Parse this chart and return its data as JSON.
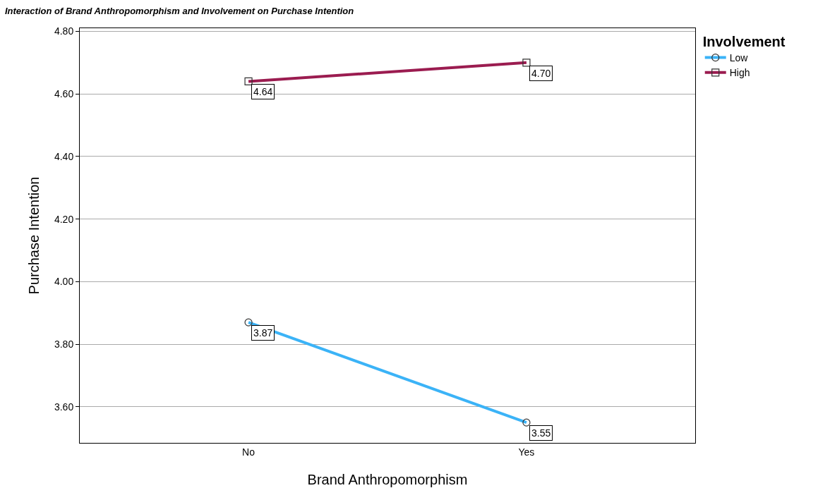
{
  "chart_data": {
    "type": "line",
    "title": "Interaction of Brand Anthropomorphism and Involvement on Purchase Intention",
    "xlabel": "Brand Anthropomorphism",
    "ylabel": "Purchase Intention",
    "legend_title": "Involvement",
    "categories": [
      "No",
      "Yes"
    ],
    "series": [
      {
        "name": "Low",
        "color": "#3bb3f7",
        "values": [
          3.87,
          3.55
        ],
        "value_labels": [
          "3.87",
          "3.55"
        ],
        "marker": "circle"
      },
      {
        "name": "High",
        "color": "#9b1c50",
        "values": [
          4.64,
          4.7
        ],
        "value_labels": [
          "4.64",
          "4.70"
        ],
        "marker": "square"
      }
    ],
    "ylim": [
      3.485,
      4.81
    ],
    "yticks": [
      {
        "value": 3.6,
        "label": "3.60"
      },
      {
        "value": 3.8,
        "label": "3.80"
      },
      {
        "value": 4.0,
        "label": "4.00"
      },
      {
        "value": 4.2,
        "label": "4.20"
      },
      {
        "value": 4.4,
        "label": "4.40"
      },
      {
        "value": 4.6,
        "label": "4.60"
      },
      {
        "value": 4.8,
        "label": "4.80"
      }
    ],
    "grid": "y",
    "legend": "top right"
  }
}
